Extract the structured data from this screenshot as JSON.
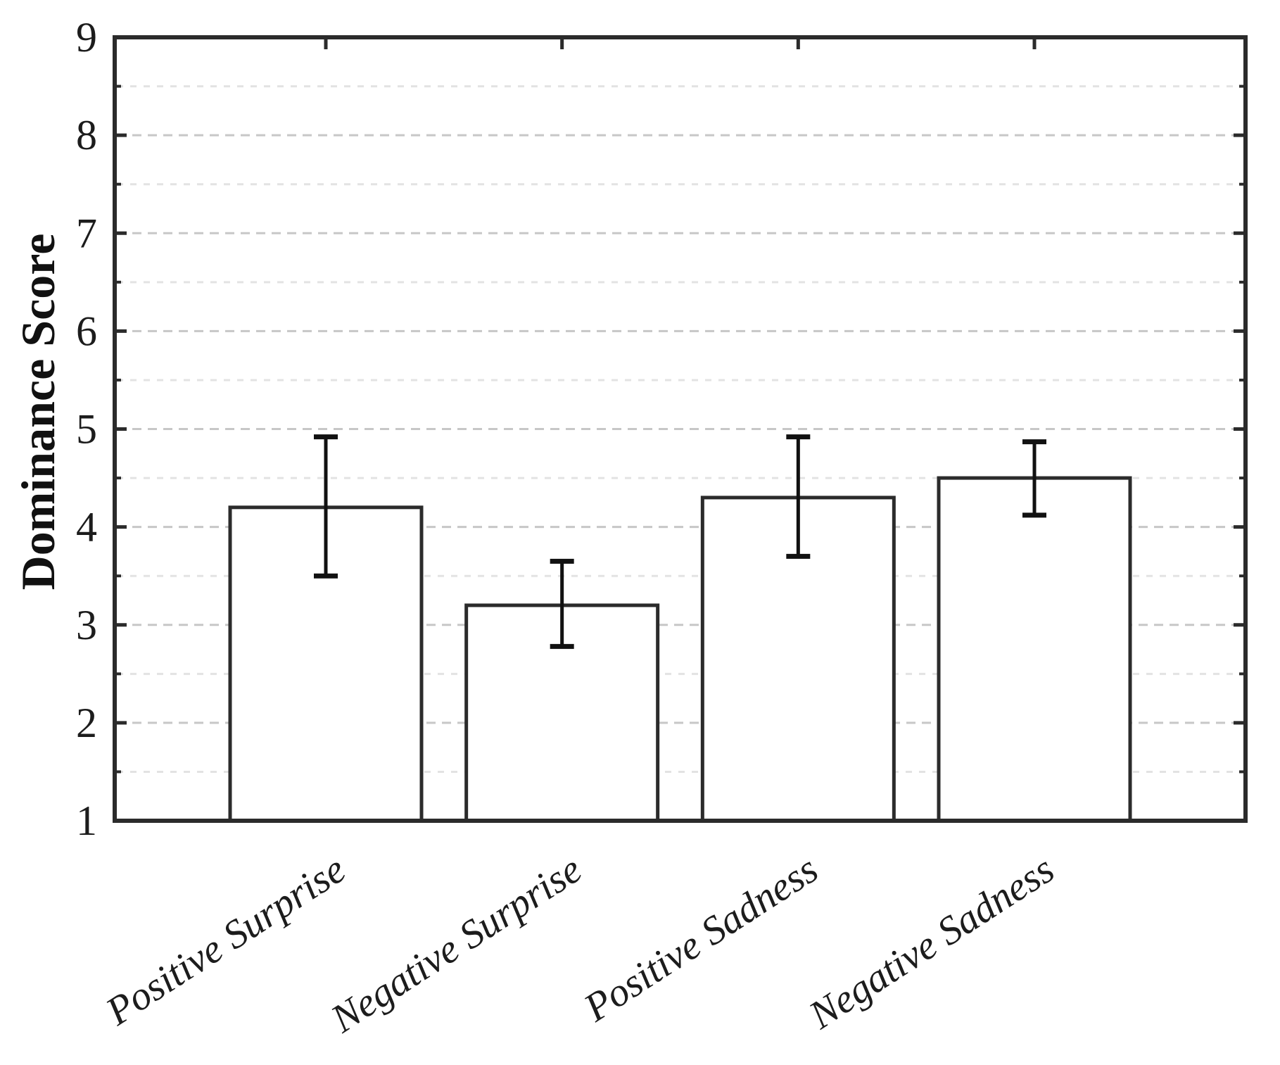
{
  "figure": {
    "background": "#ffffff"
  },
  "chart_data": {
    "type": "bar",
    "title": "",
    "xlabel": "",
    "ylabel": "Dominance Score",
    "ylim": [
      1,
      9
    ],
    "y_major_ticks": [
      1,
      2,
      3,
      4,
      5,
      6,
      7,
      8,
      9
    ],
    "y_minor_tick_step": 0.5,
    "grid": "on",
    "grid_style": "dashed",
    "legend_position": "none",
    "categories": [
      "Positive Surprise",
      "Negative Surprise",
      "Positive Sadness",
      "Negative Sadness"
    ],
    "series": [
      {
        "name": "Dominance Score",
        "values": [
          4.2,
          3.2,
          4.3,
          4.5
        ],
        "error_low": [
          3.5,
          2.78,
          3.7,
          4.12
        ],
        "error_high": [
          4.92,
          3.65,
          4.92,
          4.87
        ]
      }
    ],
    "bar_fill": "#ffffff",
    "bar_edge_color": "#2b2b2b",
    "error_bar_color": "#111111",
    "axis_color": "#2b2b2b",
    "text_color": "#1c1c1c",
    "grid_major_color": "#c7c7c7",
    "grid_minor_color": "#e3e3e3",
    "plot_background": "#ffffff"
  }
}
